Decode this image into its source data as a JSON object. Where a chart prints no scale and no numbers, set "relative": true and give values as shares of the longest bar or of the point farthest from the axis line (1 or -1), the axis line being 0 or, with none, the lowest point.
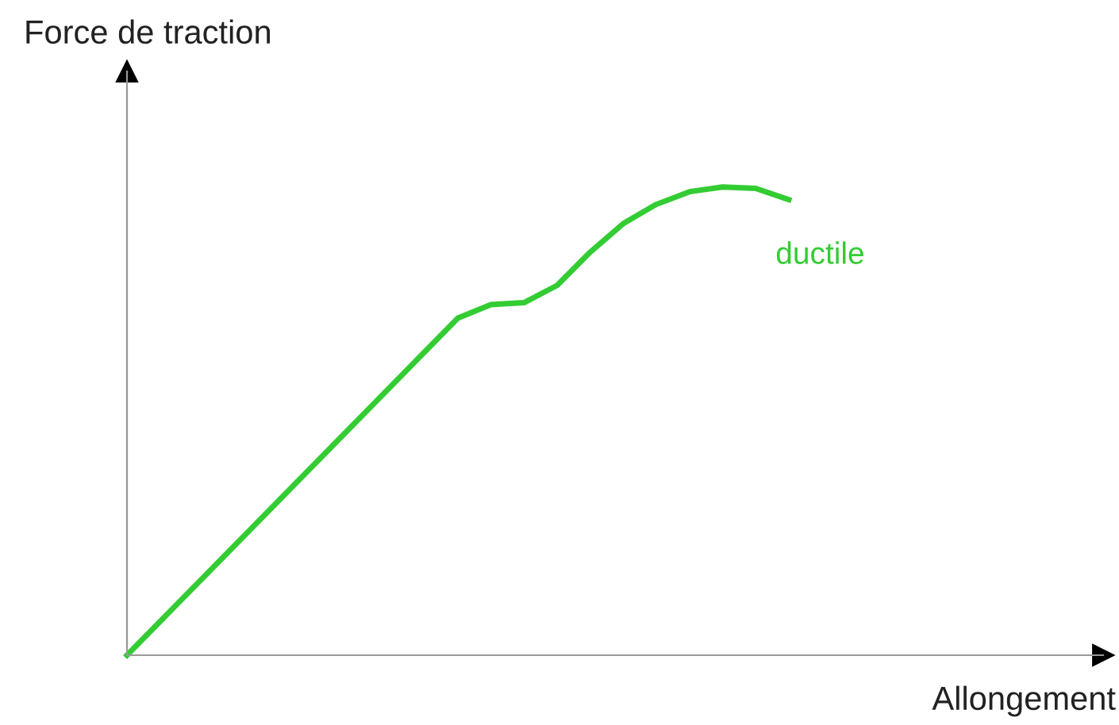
{
  "chart_data": {
    "type": "line",
    "relative": true,
    "xlabel": "Allongement",
    "ylabel": "Force de traction",
    "marker": "none",
    "line_style": "solid",
    "categories": [
      null,
      null,
      null,
      null,
      null,
      null,
      null,
      null,
      null,
      null,
      null,
      null,
      null,
      null,
      null,
      null,
      null,
      null,
      null,
      null,
      null
    ],
    "series": [
      {
        "name": "ductile",
        "color": "#33cc33",
        "values": [
          0,
          0.072,
          0.144,
          0.216,
          0.288,
          0.36,
          0.432,
          0.504,
          0.576,
          0.648,
          0.72,
          0.749,
          0.753,
          0.79,
          0.861,
          0.922,
          0.963,
          0.99,
          1,
          0.997,
          0.973
        ]
      }
    ]
  }
}
